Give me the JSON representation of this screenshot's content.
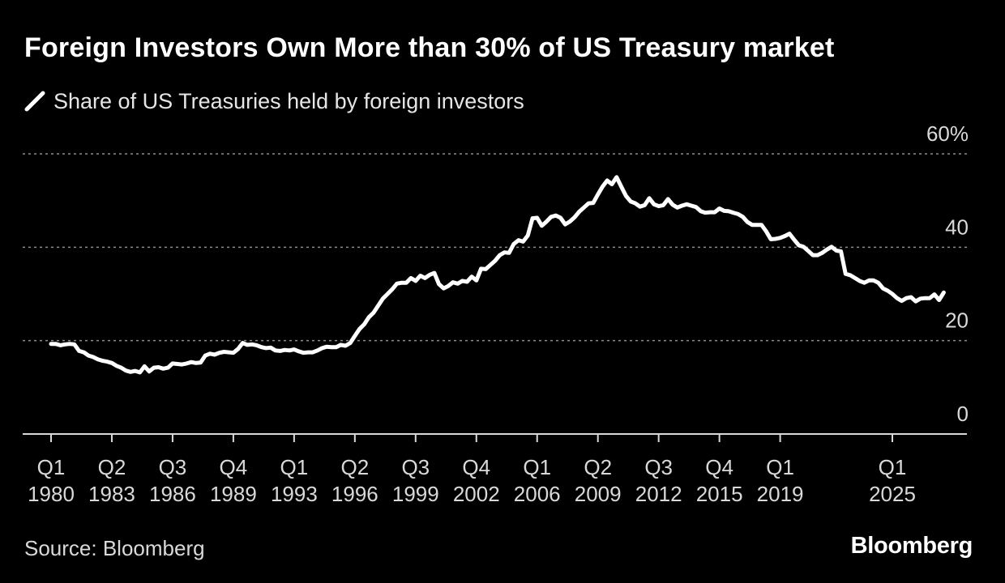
{
  "header": {
    "title": "Foreign Investors Own More than 30% of US Treasury market"
  },
  "footer": {
    "source": "Source: Bloomberg",
    "brand": "Bloomberg"
  },
  "colors": {
    "background": "#000000",
    "series": "#ffffff",
    "grid": "#8c8c8c",
    "text": "#d9d9d9"
  },
  "chart_data": {
    "type": "line",
    "title": "Foreign Investors Own More than 30% of US Treasury market",
    "xlabel": "",
    "ylabel": "",
    "ylim": [
      0,
      60
    ],
    "y_ticks": [
      {
        "value": 0,
        "label": "0"
      },
      {
        "value": 20,
        "label": "20"
      },
      {
        "value": 40,
        "label": "40"
      },
      {
        "value": 60,
        "label": "60%"
      }
    ],
    "gridlines": "dotted horizontal at 20, 40, 60",
    "legend_position": "top-left",
    "x_ticks": [
      {
        "x": 1980.0,
        "line1": "Q1",
        "line2": "1980"
      },
      {
        "x": 1983.25,
        "line1": "Q2",
        "line2": "1983"
      },
      {
        "x": 1986.5,
        "line1": "Q3",
        "line2": "1986"
      },
      {
        "x": 1989.75,
        "line1": "Q4",
        "line2": "1989"
      },
      {
        "x": 1993.0,
        "line1": "Q1",
        "line2": "1993"
      },
      {
        "x": 1996.25,
        "line1": "Q2",
        "line2": "1996"
      },
      {
        "x": 1999.5,
        "line1": "Q3",
        "line2": "1999"
      },
      {
        "x": 2002.75,
        "line1": "Q4",
        "line2": "2002"
      },
      {
        "x": 2006.0,
        "line1": "Q1",
        "line2": "2006"
      },
      {
        "x": 2009.25,
        "line1": "Q2",
        "line2": "2009"
      },
      {
        "x": 2012.5,
        "line1": "Q3",
        "line2": "2012"
      },
      {
        "x": 2015.75,
        "line1": "Q4",
        "line2": "2015"
      },
      {
        "x": 2019.0,
        "line1": "Q1",
        "line2": "2019"
      },
      {
        "x": 2025.0,
        "line1": "Q1",
        "line2": "2025"
      }
    ],
    "series": [
      {
        "name": "Share of US Treasuries held by foreign investors",
        "color": "#ffffff",
        "points": [
          [
            1980.0,
            19.3
          ],
          [
            1980.25,
            19.3
          ],
          [
            1980.5,
            19.0
          ],
          [
            1980.75,
            19.2
          ],
          [
            1981.0,
            19.3
          ],
          [
            1981.25,
            19.2
          ],
          [
            1981.5,
            17.8
          ],
          [
            1981.75,
            17.5
          ],
          [
            1982.0,
            16.8
          ],
          [
            1982.25,
            16.5
          ],
          [
            1982.5,
            16.0
          ],
          [
            1982.75,
            15.7
          ],
          [
            1983.0,
            15.5
          ],
          [
            1983.25,
            15.2
          ],
          [
            1983.5,
            14.6
          ],
          [
            1983.75,
            14.2
          ],
          [
            1984.0,
            13.6
          ],
          [
            1984.25,
            13.3
          ],
          [
            1984.5,
            13.5
          ],
          [
            1984.75,
            13.2
          ],
          [
            1985.0,
            14.5
          ],
          [
            1985.25,
            13.4
          ],
          [
            1985.5,
            14.2
          ],
          [
            1985.75,
            14.3
          ],
          [
            1986.0,
            14.0
          ],
          [
            1986.25,
            14.2
          ],
          [
            1986.5,
            15.1
          ],
          [
            1986.75,
            15.0
          ],
          [
            1987.0,
            14.9
          ],
          [
            1987.25,
            15.1
          ],
          [
            1987.5,
            15.4
          ],
          [
            1987.75,
            15.2
          ],
          [
            1988.0,
            15.3
          ],
          [
            1988.25,
            16.8
          ],
          [
            1988.5,
            17.2
          ],
          [
            1988.75,
            17.0
          ],
          [
            1989.0,
            17.4
          ],
          [
            1989.25,
            17.6
          ],
          [
            1989.75,
            17.4
          ],
          [
            1990.0,
            18.2
          ],
          [
            1990.25,
            19.5
          ],
          [
            1990.5,
            19.1
          ],
          [
            1990.75,
            19.2
          ],
          [
            1991.0,
            19.0
          ],
          [
            1991.25,
            18.6
          ],
          [
            1991.5,
            18.4
          ],
          [
            1991.75,
            18.5
          ],
          [
            1992.0,
            17.9
          ],
          [
            1992.25,
            17.8
          ],
          [
            1992.5,
            18.0
          ],
          [
            1992.75,
            17.9
          ],
          [
            1993.0,
            18.1
          ],
          [
            1993.25,
            17.7
          ],
          [
            1993.5,
            17.4
          ],
          [
            1993.75,
            17.5
          ],
          [
            1994.0,
            17.5
          ],
          [
            1994.25,
            17.9
          ],
          [
            1994.5,
            18.4
          ],
          [
            1994.75,
            18.7
          ],
          [
            1995.0,
            18.6
          ],
          [
            1995.25,
            18.6
          ],
          [
            1995.5,
            19.1
          ],
          [
            1995.75,
            18.9
          ],
          [
            1996.0,
            19.5
          ],
          [
            1996.25,
            21.0
          ],
          [
            1996.5,
            22.5
          ],
          [
            1996.75,
            23.5
          ],
          [
            1997.0,
            25.0
          ],
          [
            1997.25,
            26.0
          ],
          [
            1997.5,
            27.5
          ],
          [
            1997.75,
            29.0
          ],
          [
            1998.0,
            30.0
          ],
          [
            1998.25,
            31.0
          ],
          [
            1998.5,
            32.2
          ],
          [
            1998.75,
            32.4
          ],
          [
            1999.0,
            32.4
          ],
          [
            1999.25,
            33.4
          ],
          [
            1999.5,
            32.8
          ],
          [
            1999.75,
            33.9
          ],
          [
            2000.0,
            33.4
          ],
          [
            2000.25,
            34.1
          ],
          [
            2000.5,
            34.5
          ],
          [
            2000.75,
            32.1
          ],
          [
            2001.0,
            31.2
          ],
          [
            2001.25,
            31.7
          ],
          [
            2001.5,
            32.5
          ],
          [
            2001.75,
            32.2
          ],
          [
            2002.0,
            32.8
          ],
          [
            2002.25,
            32.6
          ],
          [
            2002.5,
            33.7
          ],
          [
            2002.75,
            32.9
          ],
          [
            2003.0,
            35.4
          ],
          [
            2003.25,
            35.3
          ],
          [
            2003.5,
            36.2
          ],
          [
            2003.75,
            37.1
          ],
          [
            2004.0,
            38.3
          ],
          [
            2004.25,
            38.9
          ],
          [
            2004.5,
            38.8
          ],
          [
            2004.75,
            40.7
          ],
          [
            2005.0,
            41.5
          ],
          [
            2005.25,
            41.2
          ],
          [
            2005.5,
            42.5
          ],
          [
            2005.75,
            46.2
          ],
          [
            2006.0,
            46.3
          ],
          [
            2006.25,
            44.6
          ],
          [
            2006.5,
            45.5
          ],
          [
            2006.75,
            46.5
          ],
          [
            2007.0,
            46.8
          ],
          [
            2007.25,
            46.3
          ],
          [
            2007.5,
            44.9
          ],
          [
            2007.75,
            45.5
          ],
          [
            2008.0,
            46.4
          ],
          [
            2008.25,
            47.6
          ],
          [
            2008.5,
            48.5
          ],
          [
            2008.75,
            49.4
          ],
          [
            2009.0,
            49.5
          ],
          [
            2009.25,
            51.3
          ],
          [
            2009.5,
            53.0
          ],
          [
            2009.75,
            54.3
          ],
          [
            2010.0,
            53.5
          ],
          [
            2010.25,
            55.0
          ],
          [
            2010.5,
            53.0
          ],
          [
            2010.75,
            51.0
          ],
          [
            2011.0,
            49.8
          ],
          [
            2011.25,
            49.4
          ],
          [
            2011.5,
            48.7
          ],
          [
            2011.75,
            49.0
          ],
          [
            2012.0,
            50.5
          ],
          [
            2012.25,
            49.2
          ],
          [
            2012.5,
            48.8
          ],
          [
            2012.75,
            49.0
          ],
          [
            2013.0,
            50.3
          ],
          [
            2013.25,
            49.1
          ],
          [
            2013.5,
            48.5
          ],
          [
            2013.75,
            48.9
          ],
          [
            2014.0,
            49.2
          ],
          [
            2014.25,
            48.9
          ],
          [
            2014.5,
            48.6
          ],
          [
            2014.75,
            47.7
          ],
          [
            2015.0,
            47.4
          ],
          [
            2015.25,
            47.5
          ],
          [
            2015.5,
            47.5
          ],
          [
            2015.75,
            48.3
          ],
          [
            2016.0,
            47.8
          ],
          [
            2016.25,
            47.7
          ],
          [
            2016.5,
            47.4
          ],
          [
            2016.75,
            47.1
          ],
          [
            2017.0,
            46.5
          ],
          [
            2017.25,
            45.4
          ],
          [
            2017.5,
            44.8
          ],
          [
            2017.75,
            44.8
          ],
          [
            2018.0,
            44.8
          ],
          [
            2018.25,
            43.4
          ],
          [
            2018.5,
            41.7
          ],
          [
            2018.75,
            41.8
          ],
          [
            2019.0,
            42.0
          ],
          [
            2019.25,
            42.4
          ],
          [
            2019.5,
            42.9
          ],
          [
            2019.75,
            41.6
          ],
          [
            2020.0,
            40.4
          ],
          [
            2020.25,
            40.1
          ],
          [
            2020.5,
            39.2
          ],
          [
            2020.75,
            38.3
          ],
          [
            2021.0,
            38.3
          ],
          [
            2021.25,
            38.8
          ],
          [
            2021.5,
            39.5
          ],
          [
            2021.75,
            40.1
          ],
          [
            2022.0,
            39.3
          ],
          [
            2022.25,
            39.1
          ],
          [
            2022.5,
            34.3
          ],
          [
            2022.75,
            34.0
          ],
          [
            2023.0,
            33.4
          ],
          [
            2023.25,
            32.8
          ],
          [
            2023.5,
            32.4
          ],
          [
            2023.75,
            32.9
          ],
          [
            2024.0,
            32.9
          ],
          [
            2024.25,
            32.4
          ],
          [
            2024.5,
            31.2
          ],
          [
            2024.75,
            30.7
          ],
          [
            2025.0,
            30.0
          ],
          [
            2025.25,
            29.1
          ],
          [
            2025.5,
            28.5
          ],
          [
            2025.75,
            29.1
          ],
          [
            2026.0,
            29.3
          ],
          [
            2026.25,
            28.4
          ],
          [
            2026.5,
            29.0
          ],
          [
            2026.75,
            29.1
          ],
          [
            2027.0,
            29.1
          ],
          [
            2027.25,
            29.9
          ],
          [
            2027.5,
            28.7
          ],
          [
            2027.75,
            30.3
          ]
        ]
      }
    ]
  }
}
